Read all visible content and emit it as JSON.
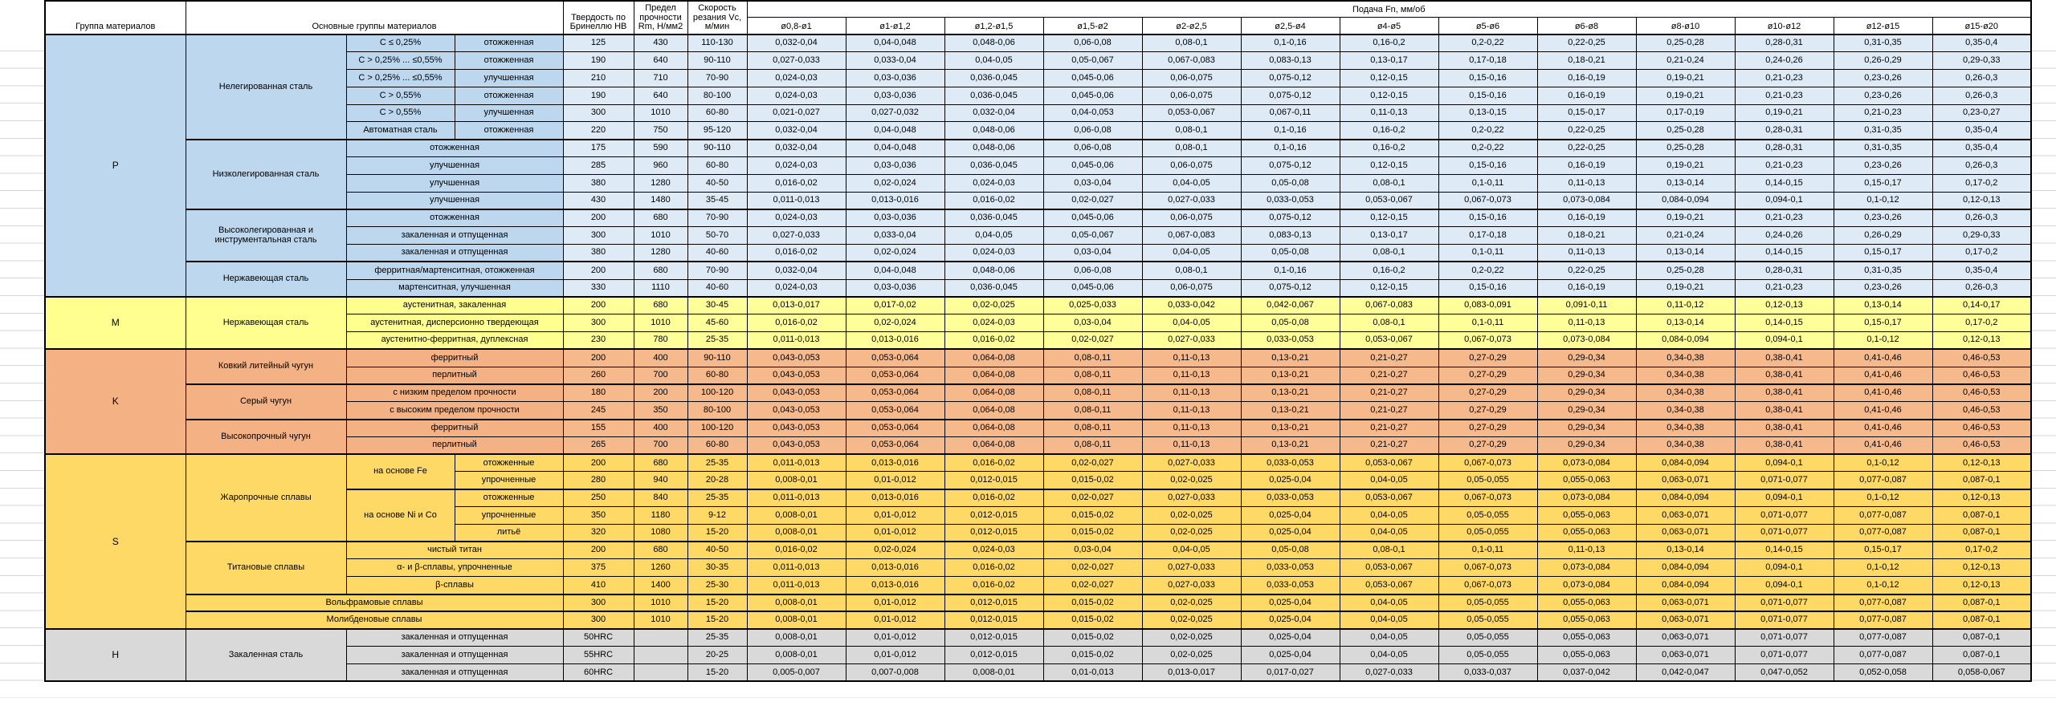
{
  "header": {
    "col_group": "Группа материалов",
    "col_main": "Основные группы материалов",
    "col_hardness": "Твердость по Бринеллю HB",
    "col_strength": "Предел прочности Rm, Н/мм2",
    "col_speed": "Скорость резания Vc, м/мин",
    "feed_title": "Подача Fn, мм/об",
    "feed_columns": [
      "ø0,8-ø1",
      "ø1-ø1,2",
      "ø1,2-ø1,5",
      "ø1,5-ø2",
      "ø2-ø2,5",
      "ø2,5-ø4",
      "ø4-ø5",
      "ø5-ø6",
      "ø6-ø8",
      "ø8-ø10",
      "ø10-ø12",
      "ø12-ø15",
      "ø15-ø20"
    ]
  },
  "feed_patterns": {
    "A": [
      "0,032-0,04",
      "0,04-0,048",
      "0,048-0,06",
      "0,06-0,08",
      "0,08-0,1",
      "0,1-0,16",
      "0,16-0,2",
      "0,2-0,22",
      "0,22-0,25",
      "0,25-0,28",
      "0,28-0,31",
      "0,31-0,35",
      "0,35-0,4"
    ],
    "B": [
      "0,027-0,033",
      "0,033-0,04",
      "0,04-0,05",
      "0,05-0,067",
      "0,067-0,083",
      "0,083-0,13",
      "0,13-0,17",
      "0,17-0,18",
      "0,18-0,21",
      "0,21-0,24",
      "0,24-0,26",
      "0,26-0,29",
      "0,29-0,33"
    ],
    "C": [
      "0,024-0,03",
      "0,03-0,036",
      "0,036-0,045",
      "0,045-0,06",
      "0,06-0,075",
      "0,075-0,12",
      "0,12-0,15",
      "0,15-0,16",
      "0,16-0,19",
      "0,19-0,21",
      "0,21-0,23",
      "0,23-0,26",
      "0,26-0,3"
    ],
    "D": [
      "0,021-0,027",
      "0,027-0,032",
      "0,032-0,04",
      "0,04-0,053",
      "0,053-0,067",
      "0,067-0,11",
      "0,11-0,13",
      "0,13-0,15",
      "0,15-0,17",
      "0,17-0,19",
      "0,19-0,21",
      "0,21-0,23",
      "0,23-0,27"
    ],
    "E": [
      "0,016-0,02",
      "0,02-0,024",
      "0,024-0,03",
      "0,03-0,04",
      "0,04-0,05",
      "0,05-0,08",
      "0,08-0,1",
      "0,1-0,11",
      "0,11-0,13",
      "0,13-0,14",
      "0,14-0,15",
      "0,15-0,17",
      "0,17-0,2"
    ],
    "F": [
      "0,011-0,013",
      "0,013-0,016",
      "0,016-0,02",
      "0,02-0,027",
      "0,027-0,033",
      "0,033-0,053",
      "0,053-0,067",
      "0,067-0,073",
      "0,073-0,084",
      "0,084-0,094",
      "0,094-0,1",
      "0,1-0,12",
      "0,12-0,13"
    ],
    "G": [
      "0,013-0,017",
      "0,017-0,02",
      "0,02-0,025",
      "0,025-0,033",
      "0,033-0,042",
      "0,042-0,067",
      "0,067-0,083",
      "0,083-0,091",
      "0,091-0,11",
      "0,11-0,12",
      "0,12-0,13",
      "0,13-0,14",
      "0,14-0,17"
    ],
    "H": [
      "0,043-0,053",
      "0,053-0,064",
      "0,064-0,08",
      "0,08-0,11",
      "0,11-0,13",
      "0,13-0,21",
      "0,21-0,27",
      "0,27-0,29",
      "0,29-0,34",
      "0,34-0,38",
      "0,38-0,41",
      "0,41-0,46",
      "0,46-0,53"
    ],
    "I": [
      "0,008-0,01",
      "0,01-0,012",
      "0,012-0,015",
      "0,015-0,02",
      "0,02-0,025",
      "0,025-0,04",
      "0,04-0,05",
      "0,05-0,055",
      "0,055-0,063",
      "0,063-0,071",
      "0,071-0,077",
      "0,077-0,087",
      "0,087-0,1"
    ],
    "J": [
      "0,005-0,007",
      "0,007-0,008",
      "0,008-0,01",
      "0,01-0,013",
      "0,013-0,017",
      "0,017-0,027",
      "0,027-0,033",
      "0,033-0,037",
      "0,037-0,042",
      "0,042-0,047",
      "0,047-0,052",
      "0,052-0,058",
      "0,058-0,067"
    ]
  },
  "sections": [
    {
      "group": "P",
      "left_bg": "#BDD7EE",
      "data_bg": "#DEEBF7",
      "rows": [
        {
          "mat": [
            "Нелегированная сталь",
            6
          ],
          "sub": "C ≤ 0,25%",
          "treat": "отожженная",
          "hb": "125",
          "rm": "430",
          "vc": "110-130",
          "fp": "A"
        },
        {
          "sub": "C > 0,25% ... ≤0,55%",
          "treat": "отожженная",
          "hb": "190",
          "rm": "640",
          "vc": "90-110",
          "fp": "B"
        },
        {
          "sub": "C > 0,25% ... ≤0,55%",
          "treat": "улучшенная",
          "hb": "210",
          "rm": "710",
          "vc": "70-90",
          "fp": "C"
        },
        {
          "sub": "C > 0,55%",
          "treat": "отожженная",
          "hb": "190",
          "rm": "640",
          "vc": "80-100",
          "fp": "C"
        },
        {
          "sub": "C > 0,55%",
          "treat": "улучшенная",
          "hb": "300",
          "rm": "1010",
          "vc": "60-80",
          "fp": "D"
        },
        {
          "sub": "Автоматная сталь",
          "treat": "отожженная",
          "hb": "220",
          "rm": "750",
          "vc": "95-120",
          "fp": "A"
        },
        {
          "mat": [
            "Низколегированная сталь",
            4
          ],
          "wide": "отожженная",
          "hb": "175",
          "rm": "590",
          "vc": "90-110",
          "fp": "A"
        },
        {
          "wide": "улучшенная",
          "hb": "285",
          "rm": "960",
          "vc": "60-80",
          "fp": "C"
        },
        {
          "wide": "улучшенная",
          "hb": "380",
          "rm": "1280",
          "vc": "40-50",
          "fp": "E"
        },
        {
          "wide": "улучшенная",
          "hb": "430",
          "rm": "1480",
          "vc": "35-45",
          "fp": "F"
        },
        {
          "mat": [
            "Высоколегированная и инструментальная сталь",
            3
          ],
          "wide": "отожженная",
          "hb": "200",
          "rm": "680",
          "vc": "70-90",
          "fp": "C"
        },
        {
          "wide": "закаленная и отпущенная",
          "hb": "300",
          "rm": "1010",
          "vc": "50-70",
          "fp": "B"
        },
        {
          "wide": "закаленная и отпущенная",
          "hb": "380",
          "rm": "1280",
          "vc": "40-60",
          "fp": "E"
        },
        {
          "mat": [
            "Нержавеющая сталь",
            2
          ],
          "wide": "ферритная/мартенситная, отожженная",
          "hb": "200",
          "rm": "680",
          "vc": "70-90",
          "fp": "A"
        },
        {
          "wide": "мартенситная, улучшенная",
          "hb": "330",
          "rm": "1110",
          "vc": "40-60",
          "fp": "C"
        }
      ]
    },
    {
      "group": "M",
      "left_bg": "#FFFF8F",
      "data_bg": "#FFFF99",
      "rows": [
        {
          "mat": [
            "Нержавеющая сталь",
            3
          ],
          "wide": "аустенитная, закаленная",
          "hb": "200",
          "rm": "680",
          "vc": "30-45",
          "fp": "G"
        },
        {
          "wide": "аустенитная, дисперсионно твердеющая",
          "hb": "300",
          "rm": "1010",
          "vc": "45-60",
          "fp": "E"
        },
        {
          "wide": "аустенитно-ферритная, дуплексная",
          "hb": "230",
          "rm": "780",
          "vc": "25-35",
          "fp": "F"
        }
      ]
    },
    {
      "group": "K",
      "left_bg": "#F4B183",
      "data_bg": "#F5B98C",
      "rows": [
        {
          "mat": [
            "Ковкий литейный чугун",
            2
          ],
          "wide": "ферритный",
          "hb": "200",
          "rm": "400",
          "vc": "90-110",
          "fp": "H"
        },
        {
          "wide": "перлитный",
          "hb": "260",
          "rm": "700",
          "vc": "60-80",
          "fp": "H"
        },
        {
          "mat": [
            "Серый чугун",
            2
          ],
          "wide": "с низким пределом прочности",
          "hb": "180",
          "rm": "200",
          "vc": "100-120",
          "fp": "H"
        },
        {
          "wide": "с высоким пределом прочности",
          "hb": "245",
          "rm": "350",
          "vc": "80-100",
          "fp": "H"
        },
        {
          "mat": [
            "Высокопрочный чугун",
            2
          ],
          "wide": "ферритный",
          "hb": "155",
          "rm": "400",
          "vc": "100-120",
          "fp": "H"
        },
        {
          "wide": "перлитный",
          "hb": "265",
          "rm": "700",
          "vc": "60-80",
          "fp": "H"
        }
      ]
    },
    {
      "group": "S",
      "left_bg": "#FFD966",
      "data_bg": "#FFD966",
      "rows": [
        {
          "mat": [
            "Жаропрочные сплавы",
            5
          ],
          "sub2": [
            "на основе Fe",
            2
          ],
          "treat": "отожженные",
          "hb": "200",
          "rm": "680",
          "vc": "25-35",
          "fp": "F"
        },
        {
          "treat": "упрочненные",
          "hb": "280",
          "rm": "940",
          "vc": "20-28",
          "fp": "I"
        },
        {
          "sub2": [
            "на основе Ni и Co",
            3
          ],
          "treat": "отожженные",
          "hb": "250",
          "rm": "840",
          "vc": "25-35",
          "fp": "F"
        },
        {
          "treat": "упрочненные",
          "hb": "350",
          "rm": "1180",
          "vc": "9-12",
          "fp": "I"
        },
        {
          "treat": "литьё",
          "hb": "320",
          "rm": "1080",
          "vc": "15-20",
          "fp": "I"
        },
        {
          "mat": [
            "Титановые сплавы",
            3
          ],
          "wide": "чистый титан",
          "hb": "200",
          "rm": "680",
          "vc": "40-50",
          "fp": "E"
        },
        {
          "wide": "α- и β-сплавы, упрочненные",
          "hb": "375",
          "rm": "1260",
          "vc": "30-35",
          "fp": "F"
        },
        {
          "wide": "β-сплавы",
          "hb": "410",
          "rm": "1400",
          "vc": "25-30",
          "fp": "F"
        },
        {
          "matwide": "Вольфрамовые сплавы",
          "hb": "300",
          "rm": "1010",
          "vc": "15-20",
          "fp": "I"
        },
        {
          "matwide": "Молибденовые сплавы",
          "hb": "300",
          "rm": "1010",
          "vc": "15-20",
          "fp": "I"
        }
      ]
    },
    {
      "group": "H",
      "left_bg": "#D9D9D9",
      "data_bg": "#D9D9D9",
      "rows": [
        {
          "mat": [
            "Закаленная сталь",
            3
          ],
          "wide": "закаленная и отпущенная",
          "hb": "50HRC",
          "rm": "",
          "vc": "25-35",
          "fp": "I"
        },
        {
          "wide": "закаленная и отпущенная",
          "hb": "55HRC",
          "rm": "",
          "vc": "20-25",
          "fp": "I"
        },
        {
          "wide": "закаленная и отпущенная",
          "hb": "60HRC",
          "rm": "",
          "vc": "15-20",
          "fp": "J"
        }
      ]
    }
  ]
}
